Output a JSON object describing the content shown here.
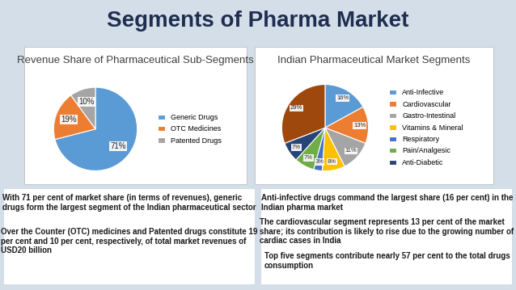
{
  "title": "Segments of Pharma Market",
  "chart_data": [
    {
      "type": "pie",
      "title": "Revenue Share of Pharmaceutical Sub-Segments",
      "categories": [
        "Generic Drugs",
        "OTC Medicines",
        "Patented Drugs"
      ],
      "values": [
        71,
        19,
        10
      ],
      "value_labels": [
        "71%",
        "19%",
        "10%"
      ],
      "colors": [
        "#5b9bd5",
        "#ed7d31",
        "#a5a5a5"
      ],
      "data_labels": true,
      "legend": "right"
    },
    {
      "type": "pie",
      "title": "Indian Pharmaceutical Market Segments",
      "categories": [
        "Anti-Infective",
        "Cardiovascular",
        "Gastro-Intestinal",
        "Vitamins & Mineral",
        "Respiratory",
        "Pain/Analgesic",
        "Anti-Diabetic",
        null
      ],
      "values": [
        16,
        13,
        11,
        8,
        3,
        7,
        7,
        29
      ],
      "value_labels": [
        "16%",
        "13%",
        "11%",
        "8%",
        "3%",
        "7%",
        "7%",
        "29%"
      ],
      "colors": [
        "#5b9bd5",
        "#ed7d31",
        "#a5a5a5",
        "#ffc000",
        "#4472c4",
        "#70ad47",
        "#264478",
        "#9e480e"
      ],
      "data_labels": true,
      "legend": "right"
    }
  ],
  "bullets": [
    [
      "With 71 per cent of market share (in terms of revenues), generic drugs form the largest segment of the Indian pharmaceutical sector",
      "Over the Counter (OTC) medicines and Patented drugs constitute 19 per cent and 10 per cent, respectively, of total market revenues of USD20 billion"
    ],
    [
      "Anti-infective drugs command the largest share (16 per cent) in the Indian pharma market",
      "The cardiovascular segment represents 13 per cent of the market share; its contribution is likely to rise due to the growing number of cardiac cases in India",
      "Top five segments contribute nearly 57 per cent to the total drugs consumption"
    ]
  ]
}
